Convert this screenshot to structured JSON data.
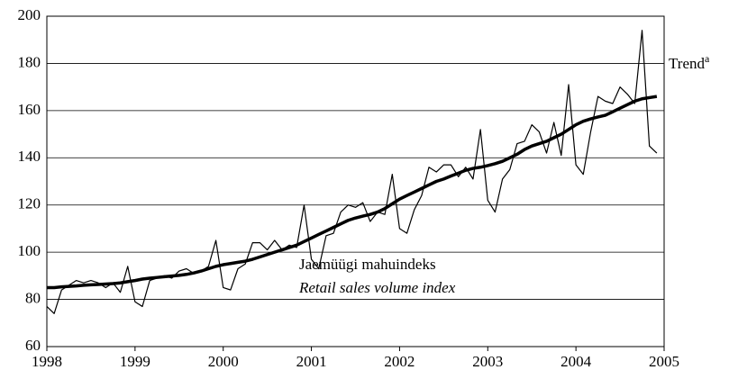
{
  "chart_data": {
    "type": "line",
    "xlim": [
      1998,
      2005
    ],
    "xticks": [
      1998,
      1999,
      2000,
      2001,
      2002,
      2003,
      2004,
      2005
    ],
    "ylim": [
      60,
      200
    ],
    "yticks": [
      60,
      80,
      100,
      120,
      140,
      160,
      180,
      200
    ],
    "grid": true,
    "x": [
      1998,
      1998.083,
      1998.167,
      1998.25,
      1998.333,
      1998.417,
      1998.5,
      1998.583,
      1998.667,
      1998.75,
      1998.833,
      1998.917,
      1999,
      1999.083,
      1999.167,
      1999.25,
      1999.333,
      1999.417,
      1999.5,
      1999.583,
      1999.667,
      1999.75,
      1999.833,
      1999.917,
      2000,
      2000.083,
      2000.167,
      2000.25,
      2000.333,
      2000.417,
      2000.5,
      2000.583,
      2000.667,
      2000.75,
      2000.833,
      2000.917,
      2001,
      2001.083,
      2001.167,
      2001.25,
      2001.333,
      2001.417,
      2001.5,
      2001.583,
      2001.667,
      2001.75,
      2001.833,
      2001.917,
      2002,
      2002.083,
      2002.167,
      2002.25,
      2002.333,
      2002.417,
      2002.5,
      2002.583,
      2002.667,
      2002.75,
      2002.833,
      2002.917,
      2003,
      2003.083,
      2003.167,
      2003.25,
      2003.333,
      2003.417,
      2003.5,
      2003.583,
      2003.667,
      2003.75,
      2003.833,
      2003.917,
      2004,
      2004.083,
      2004.167,
      2004.25,
      2004.333,
      2004.417,
      2004.5,
      2004.583,
      2004.667,
      2004.75,
      2004.833,
      2004.917
    ],
    "series": [
      {
        "name": "Jaemüügi mahuindeks",
        "name_en": "Retail sales volume index",
        "color": "#000000",
        "values": [
          77,
          74,
          84,
          86,
          88,
          87,
          88,
          87,
          85,
          87,
          83,
          94,
          79,
          77,
          88,
          89,
          90,
          89,
          92,
          93,
          91,
          92,
          94,
          105,
          85,
          84,
          93,
          95,
          104,
          104,
          101,
          105,
          101,
          103,
          102,
          120,
          97,
          93,
          107,
          108,
          117,
          120,
          119,
          121,
          113,
          117,
          116,
          133,
          110,
          108,
          118,
          124,
          136,
          134,
          137,
          137,
          132,
          136,
          131,
          152,
          122,
          117,
          131,
          135,
          146,
          147,
          154,
          151,
          142,
          155,
          141,
          171,
          137,
          133,
          151,
          166,
          164,
          163,
          170,
          167,
          163,
          194,
          145,
          142
        ]
      },
      {
        "name": "Trend",
        "note": "a",
        "color": "#000000",
        "values": [
          85,
          85,
          85.3,
          85.5,
          85.7,
          86,
          86.2,
          86.3,
          86.5,
          86.7,
          87,
          87.5,
          88,
          88.6,
          89,
          89.3,
          89.6,
          89.9,
          90.2,
          90.6,
          91.2,
          92,
          93,
          94,
          94.7,
          95.2,
          95.7,
          96.2,
          97,
          98,
          99,
          100,
          101,
          102,
          103,
          104.5,
          106,
          107.5,
          109,
          110.5,
          112,
          113.5,
          114.5,
          115.3,
          116,
          117,
          118.5,
          120.5,
          122.5,
          124,
          125.5,
          127,
          128.5,
          130,
          131,
          132.3,
          133.5,
          134.7,
          135.5,
          136,
          136.7,
          137.5,
          138.5,
          140,
          141.5,
          143.5,
          145,
          146,
          147,
          148.5,
          150,
          152,
          154,
          155.5,
          156.5,
          157.3,
          158,
          159.5,
          161,
          162.5,
          164,
          165,
          165.5,
          166
        ]
      }
    ]
  }
}
